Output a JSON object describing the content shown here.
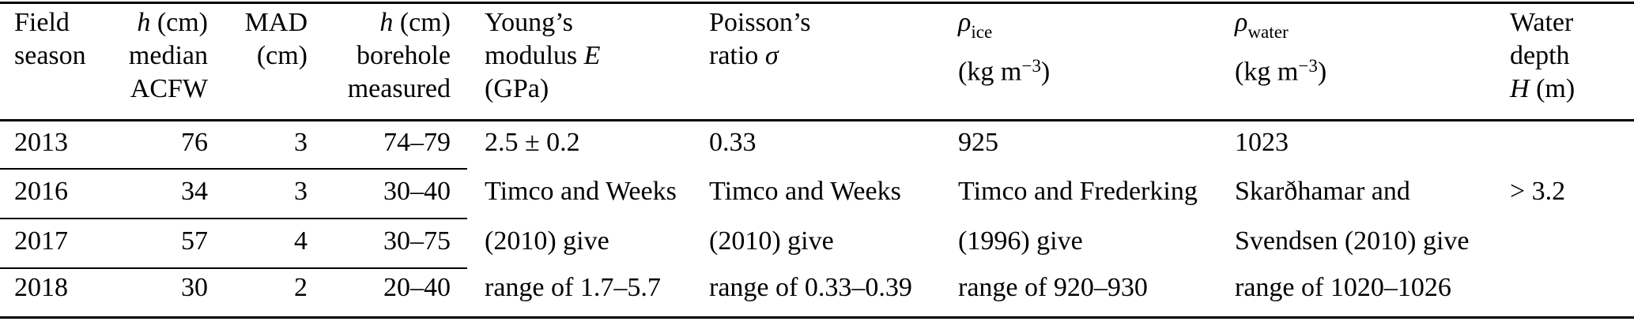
{
  "colors": {
    "background": "#ffffff",
    "text": "#000000",
    "rule": "#000000"
  },
  "table": {
    "columns": [
      {
        "id": "field-season",
        "align": "left",
        "header_lines": [
          [
            {
              "t": "Field"
            }
          ],
          [
            {
              "t": "season"
            }
          ]
        ]
      },
      {
        "id": "h-median-acfw",
        "align": "right",
        "header_lines": [
          [
            {
              "t": "h",
              "i": true
            },
            {
              "t": " (cm)"
            }
          ],
          [
            {
              "t": "median"
            }
          ],
          [
            {
              "t": "ACFW"
            }
          ]
        ]
      },
      {
        "id": "mad",
        "align": "right",
        "header_lines": [
          [
            {
              "t": "MAD"
            }
          ],
          [
            {
              "t": "(cm)"
            }
          ]
        ]
      },
      {
        "id": "h-borehole",
        "align": "right",
        "header_lines": [
          [
            {
              "t": "h",
              "i": true
            },
            {
              "t": " (cm)"
            }
          ],
          [
            {
              "t": "borehole"
            }
          ],
          [
            {
              "t": "measured"
            }
          ]
        ]
      },
      {
        "id": "youngs-modulus",
        "align": "left",
        "header_lines": [
          [
            {
              "t": "Young’s"
            }
          ],
          [
            {
              "t": "modulus "
            },
            {
              "t": "E",
              "i": true
            }
          ],
          [
            {
              "t": "(GPa)"
            }
          ]
        ]
      },
      {
        "id": "poissons-ratio",
        "align": "left",
        "header_lines": [
          [
            {
              "t": "Poisson’s"
            }
          ],
          [
            {
              "t": "ratio "
            },
            {
              "t": "σ",
              "i": true
            }
          ]
        ]
      },
      {
        "id": "rho-ice",
        "align": "left",
        "header_lines": [
          [
            {
              "t": "ρ",
              "i": true
            },
            {
              "t": "ice",
              "sub": true
            }
          ],
          [
            {
              "t": "(kg m"
            },
            {
              "t": "−3",
              "sup": true
            },
            {
              "t": ")"
            }
          ]
        ]
      },
      {
        "id": "rho-water",
        "align": "left",
        "header_lines": [
          [
            {
              "t": "ρ",
              "i": true
            },
            {
              "t": "water",
              "sub": true
            }
          ],
          [
            {
              "t": "(kg m"
            },
            {
              "t": "−3",
              "sup": true
            },
            {
              "t": ")"
            }
          ]
        ]
      },
      {
        "id": "water-depth",
        "align": "left",
        "header_lines": [
          [
            {
              "t": "Water"
            }
          ],
          [
            {
              "t": "depth"
            }
          ],
          [
            {
              "t": "H",
              "i": true
            },
            {
              "t": " (m)"
            }
          ]
        ]
      }
    ],
    "rows": [
      {
        "cells": [
          "2013",
          "76",
          "3",
          "74–79",
          "2.5 ± 0.2",
          "0.33",
          "925",
          "1023",
          ""
        ]
      },
      {
        "cells": [
          "2016",
          "34",
          "3",
          "30–40",
          "Timco and Weeks",
          "Timco and Weeks",
          "Timco and Frederking",
          "Skarðhamar and",
          "> 3.2"
        ]
      },
      {
        "cells": [
          "2017",
          "57",
          "4",
          "30–75",
          "(2010) give",
          "(2010) give",
          "(1996) give",
          "Svendsen (2010) give",
          ""
        ]
      },
      {
        "cells": [
          "2018",
          "30",
          "2",
          "20–40",
          "range of 1.7–5.7",
          "range of 0.33–0.39",
          "range of 920–930",
          "range of 1020–1026",
          ""
        ]
      }
    ]
  }
}
